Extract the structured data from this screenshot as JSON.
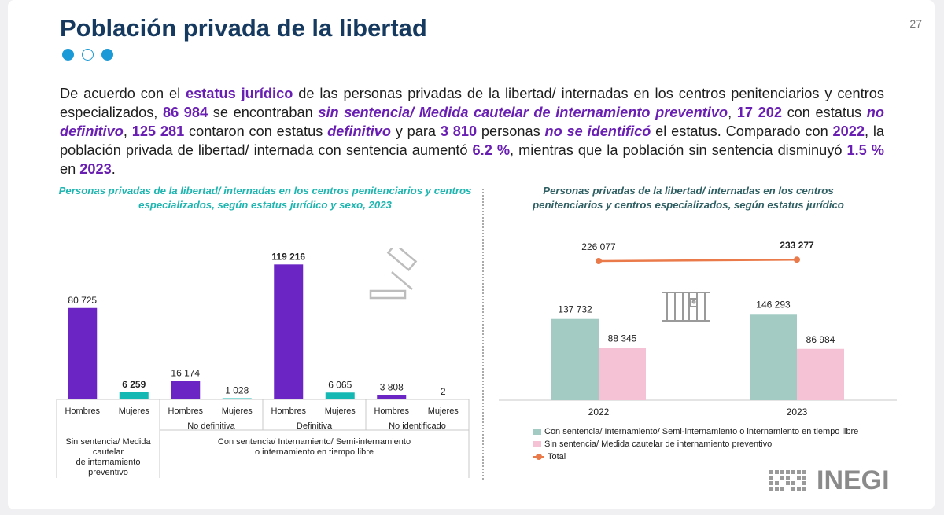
{
  "page_number": "27",
  "title": "Población privada de la libertad",
  "paragraph": {
    "p1": "De acuerdo con el ",
    "h1": "estatus jurídico",
    "p2": " de las personas privadas de la libertad/ internadas en los centros penitenciarios y centros especializados, ",
    "h2": "86 984",
    "p3": " se encontraban ",
    "h3": "sin sentencia/ Medida cautelar de internamiento preventivo",
    "p4": ", ",
    "h4": "17 202",
    "p5": " con estatus ",
    "h5": "no definitivo",
    "p6": ", ",
    "h6": "125 281",
    "p7": " contaron con estatus ",
    "h7": "definitivo",
    "p8": " y para ",
    "h8": "3 810",
    "p9": " personas ",
    "h9": "no se identificó",
    "p10": " el estatus. Comparado con ",
    "h10": "2022",
    "p11": ", la población privada de libertad/ internada con sentencia aumentó ",
    "h11": "6.2 %",
    "p12": ", mientras que la población sin sentencia disminuyó ",
    "h12": "1.5 %",
    "p13": " en ",
    "h13": "2023",
    "p14": "."
  },
  "chart_data": [
    {
      "type": "bar",
      "title": "Personas privadas de la libertad/ internadas en los centros penitenciarios y centros especializados, según estatus jurídico y sexo, 2023",
      "categories": [
        "Hombres",
        "Mujeres",
        "Hombres",
        "Mujeres",
        "Hombres",
        "Mujeres",
        "Hombres",
        "Mujeres"
      ],
      "values": [
        80725,
        6259,
        16174,
        1028,
        119216,
        6065,
        3808,
        2
      ],
      "value_labels": [
        "80 725",
        "6 259",
        "16 174",
        "1 028",
        "119 216",
        "6 065",
        "3 808",
        "2"
      ],
      "bold_labels": [
        false,
        true,
        false,
        false,
        true,
        false,
        false,
        false
      ],
      "colors": [
        "#6a25c4",
        "#16b8b4"
      ],
      "groups": [
        "Sin sentencia/ Medida cautelar de internamiento preventivo",
        "No definitiva",
        "Definitiva",
        "No identificado"
      ],
      "group_line1": [
        "Sin sentencia/ Medida",
        "cautelar",
        "de internamiento",
        "preventivo"
      ],
      "supergroup": [
        "Con sentencia/ Internamiento/ Semi-internamiento",
        "o internamiento en tiempo libre"
      ],
      "ylim": [
        0,
        125000
      ]
    },
    {
      "type": "bar",
      "title": "Personas privadas de la libertad/ internadas en los centros penitenciarios y centros especializados, según estatus jurídico",
      "categories": [
        "2022",
        "2023"
      ],
      "series": [
        {
          "name": "Con sentencia/ Internamiento/ Semi-internamiento o internamiento en tiempo libre",
          "values": [
            137732,
            146293
          ],
          "labels": [
            "137 732",
            "146 293"
          ],
          "color": "#a3cbc4"
        },
        {
          "name": "Sin sentencia/ Medida cautelar de internamiento preventivo",
          "values": [
            88345,
            86984
          ],
          "labels": [
            "88 345",
            "86 984"
          ],
          "color": "#f4c2d4"
        },
        {
          "name": "Total",
          "type": "line",
          "values": [
            226077,
            233277
          ],
          "labels": [
            "226 077",
            "233 277"
          ],
          "color": "#ea7a4a"
        }
      ],
      "ylim": [
        0,
        240000
      ]
    }
  ],
  "logo_text": "INEGI"
}
